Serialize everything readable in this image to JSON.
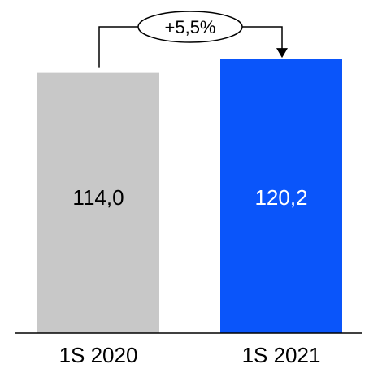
{
  "chart_data": {
    "type": "bar",
    "categories": [
      "1S 2020",
      "1S 2021"
    ],
    "values": [
      114.0,
      120.2
    ],
    "value_labels": [
      "114,0",
      "120,2"
    ],
    "bar_colors": [
      "#c8c8c8",
      "#0a55fa"
    ],
    "label_colors": [
      "#000000",
      "#ffffff"
    ],
    "annotation": {
      "text": "+5,5%",
      "from": "1S 2020",
      "to": "1S 2021"
    },
    "title": "",
    "xlabel": "",
    "ylabel": "",
    "grid": false,
    "legend": "none"
  }
}
